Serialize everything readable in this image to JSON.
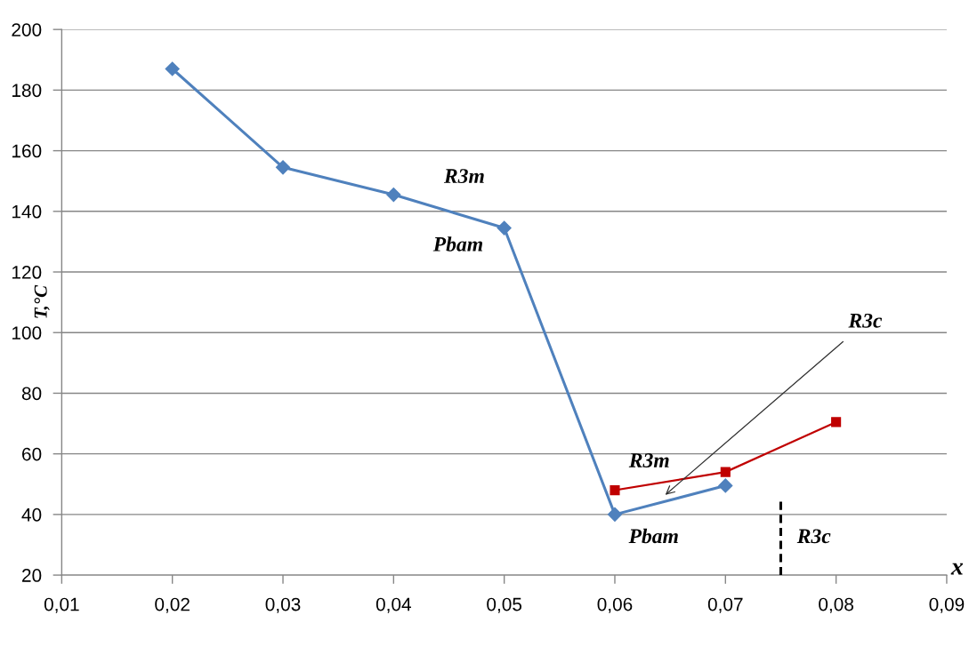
{
  "chart_data": {
    "type": "line",
    "ylabel": "T,°C",
    "xlabel": "x",
    "xlim": [
      0.01,
      0.09
    ],
    "xticks": [
      {
        "value": 0.01,
        "label": "0,01"
      },
      {
        "value": 0.02,
        "label": "0,02"
      },
      {
        "value": 0.03,
        "label": "0,03"
      },
      {
        "value": 0.04,
        "label": "0,04"
      },
      {
        "value": 0.05,
        "label": "0,05"
      },
      {
        "value": 0.06,
        "label": "0,06"
      },
      {
        "value": 0.07,
        "label": "0,07"
      },
      {
        "value": 0.08,
        "label": "0,08"
      },
      {
        "value": 0.09,
        "label": "0,09"
      }
    ],
    "ylim": [
      20,
      200
    ],
    "yticks": [
      20,
      40,
      60,
      80,
      100,
      120,
      140,
      160,
      180,
      200
    ],
    "grid": "y",
    "series": [
      {
        "color": "#4f81bd",
        "x": [
          0.02,
          0.03,
          0.04,
          0.05,
          0.06,
          0.07
        ],
        "values": [
          187,
          154.5,
          145.5,
          134.5,
          40,
          49.5
        ],
        "marker": "diamond",
        "line_style": "solid"
      },
      {
        "color": "#c00000",
        "x": [
          0.06,
          0.07,
          0.08
        ],
        "values": [
          48,
          54,
          70.5
        ],
        "marker": "square",
        "line_style": "solid"
      },
      {
        "color": "#000000",
        "x": [
          0.075,
          0.075
        ],
        "values": [
          20,
          45
        ],
        "marker": "none",
        "line_style": "dashed"
      }
    ],
    "annotations": [
      "R3m",
      "Pbam",
      "R3m",
      "Pbam",
      "R3c",
      "R3c"
    ]
  }
}
